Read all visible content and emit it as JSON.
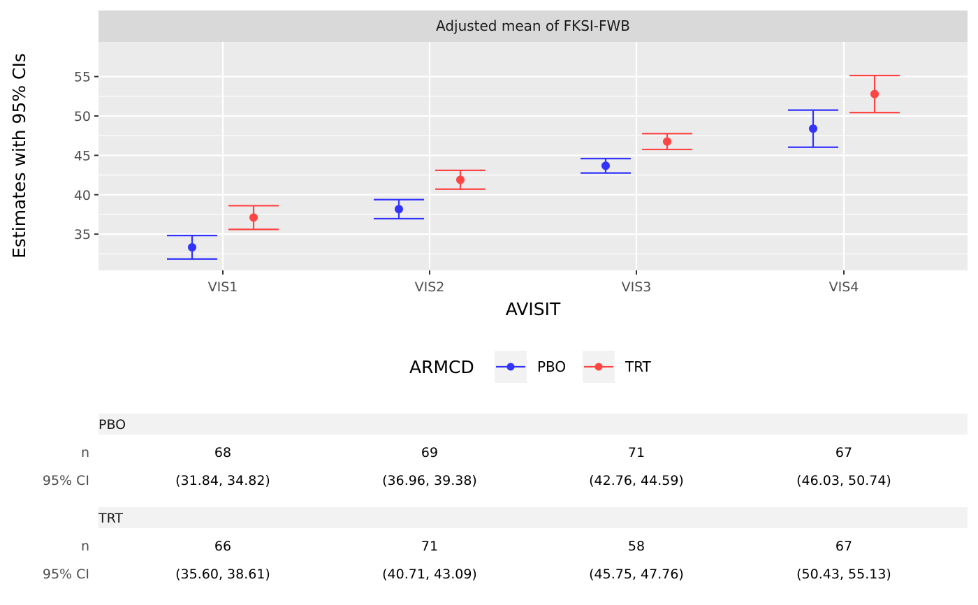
{
  "chart_data": {
    "type": "scatter",
    "facet_title": "Adjusted mean of FKSI-FWB",
    "xlabel": "AVISIT",
    "ylabel": "Estimates with 95% CIs",
    "categories": [
      "VIS1",
      "VIS2",
      "VIS3",
      "VIS4"
    ],
    "ylim": [
      30.4,
      59.4
    ],
    "yticks": [
      35,
      40,
      45,
      50,
      55
    ],
    "grid": true,
    "legend": {
      "title": "ARMCD",
      "position": "bottom",
      "items": [
        "PBO",
        "TRT"
      ]
    },
    "series": [
      {
        "name": "PBO",
        "color": "#3333ff",
        "estimate": [
          33.33,
          38.17,
          43.68,
          48.39
        ],
        "lower": [
          31.84,
          36.96,
          42.76,
          46.03
        ],
        "upper": [
          34.82,
          39.38,
          44.59,
          50.74
        ]
      },
      {
        "name": "TRT",
        "color": "#ff4444",
        "estimate": [
          37.11,
          41.9,
          46.75,
          52.78
        ],
        "lower": [
          35.6,
          40.71,
          45.75,
          50.43
        ],
        "upper": [
          38.61,
          43.09,
          47.76,
          55.13
        ]
      }
    ]
  },
  "table": {
    "row_labels": {
      "n": "n",
      "ci": "95% CI"
    },
    "groups": [
      {
        "name": "PBO",
        "n": [
          "68",
          "69",
          "71",
          "67"
        ],
        "ci": [
          "(31.84, 34.82)",
          "(36.96, 39.38)",
          "(42.76, 44.59)",
          "(46.03, 50.74)"
        ]
      },
      {
        "name": "TRT",
        "n": [
          "66",
          "71",
          "58",
          "67"
        ],
        "ci": [
          "(35.60, 38.61)",
          "(40.71, 43.09)",
          "(45.75, 47.76)",
          "(50.43, 55.13)"
        ]
      }
    ]
  }
}
